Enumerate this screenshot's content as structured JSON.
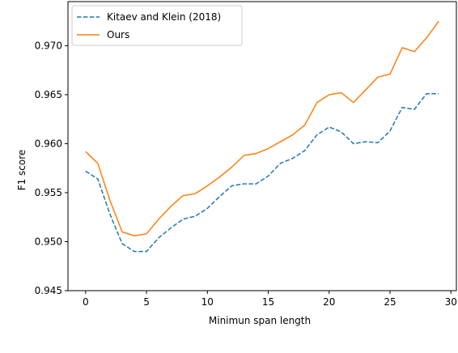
{
  "chart_data": {
    "type": "line",
    "xlabel": "Minimun span length",
    "ylabel": "F1 score",
    "xlim": [
      -1.45,
      30.45
    ],
    "ylim": [
      0.945,
      0.9745
    ],
    "xticks": [
      0,
      5,
      10,
      15,
      20,
      25,
      30
    ],
    "xtick_labels": [
      "0",
      "5",
      "10",
      "15",
      "20",
      "25",
      "30"
    ],
    "yticks": [
      0.945,
      0.95,
      0.955,
      0.96,
      0.965,
      0.97
    ],
    "ytick_labels": [
      "0.945",
      "0.950",
      "0.955",
      "0.960",
      "0.965",
      "0.970"
    ],
    "grid": false,
    "legend_position": "top-left",
    "x": [
      0,
      1,
      2,
      3,
      4,
      5,
      6,
      7,
      8,
      9,
      10,
      11,
      12,
      13,
      14,
      15,
      16,
      17,
      18,
      19,
      20,
      21,
      22,
      23,
      24,
      25,
      26,
      27,
      28,
      29
    ],
    "series": [
      {
        "name": "Kitaev and Klein (2018)",
        "color": "#1f77b4",
        "style": "dashed",
        "values": [
          0.9572,
          0.9564,
          0.9528,
          0.9498,
          0.949,
          0.949,
          0.9504,
          0.9514,
          0.9523,
          0.9526,
          0.9534,
          0.9546,
          0.9557,
          0.9559,
          0.9559,
          0.9567,
          0.958,
          0.9585,
          0.9593,
          0.9609,
          0.9617,
          0.9612,
          0.96,
          0.9602,
          0.9601,
          0.9613,
          0.9637,
          0.9635,
          0.9651,
          0.9651
        ]
      },
      {
        "name": "Ours",
        "color": "#ff7f0e",
        "style": "solid",
        "values": [
          0.9592,
          0.958,
          0.9542,
          0.951,
          0.9506,
          0.9508,
          0.9523,
          0.9536,
          0.9547,
          0.9549,
          0.9557,
          0.9566,
          0.9576,
          0.9588,
          0.959,
          0.9595,
          0.9602,
          0.9609,
          0.9619,
          0.9642,
          0.965,
          0.9652,
          0.9642,
          0.9655,
          0.9668,
          0.9671,
          0.9698,
          0.9694,
          0.9708,
          0.9725
        ]
      }
    ]
  }
}
